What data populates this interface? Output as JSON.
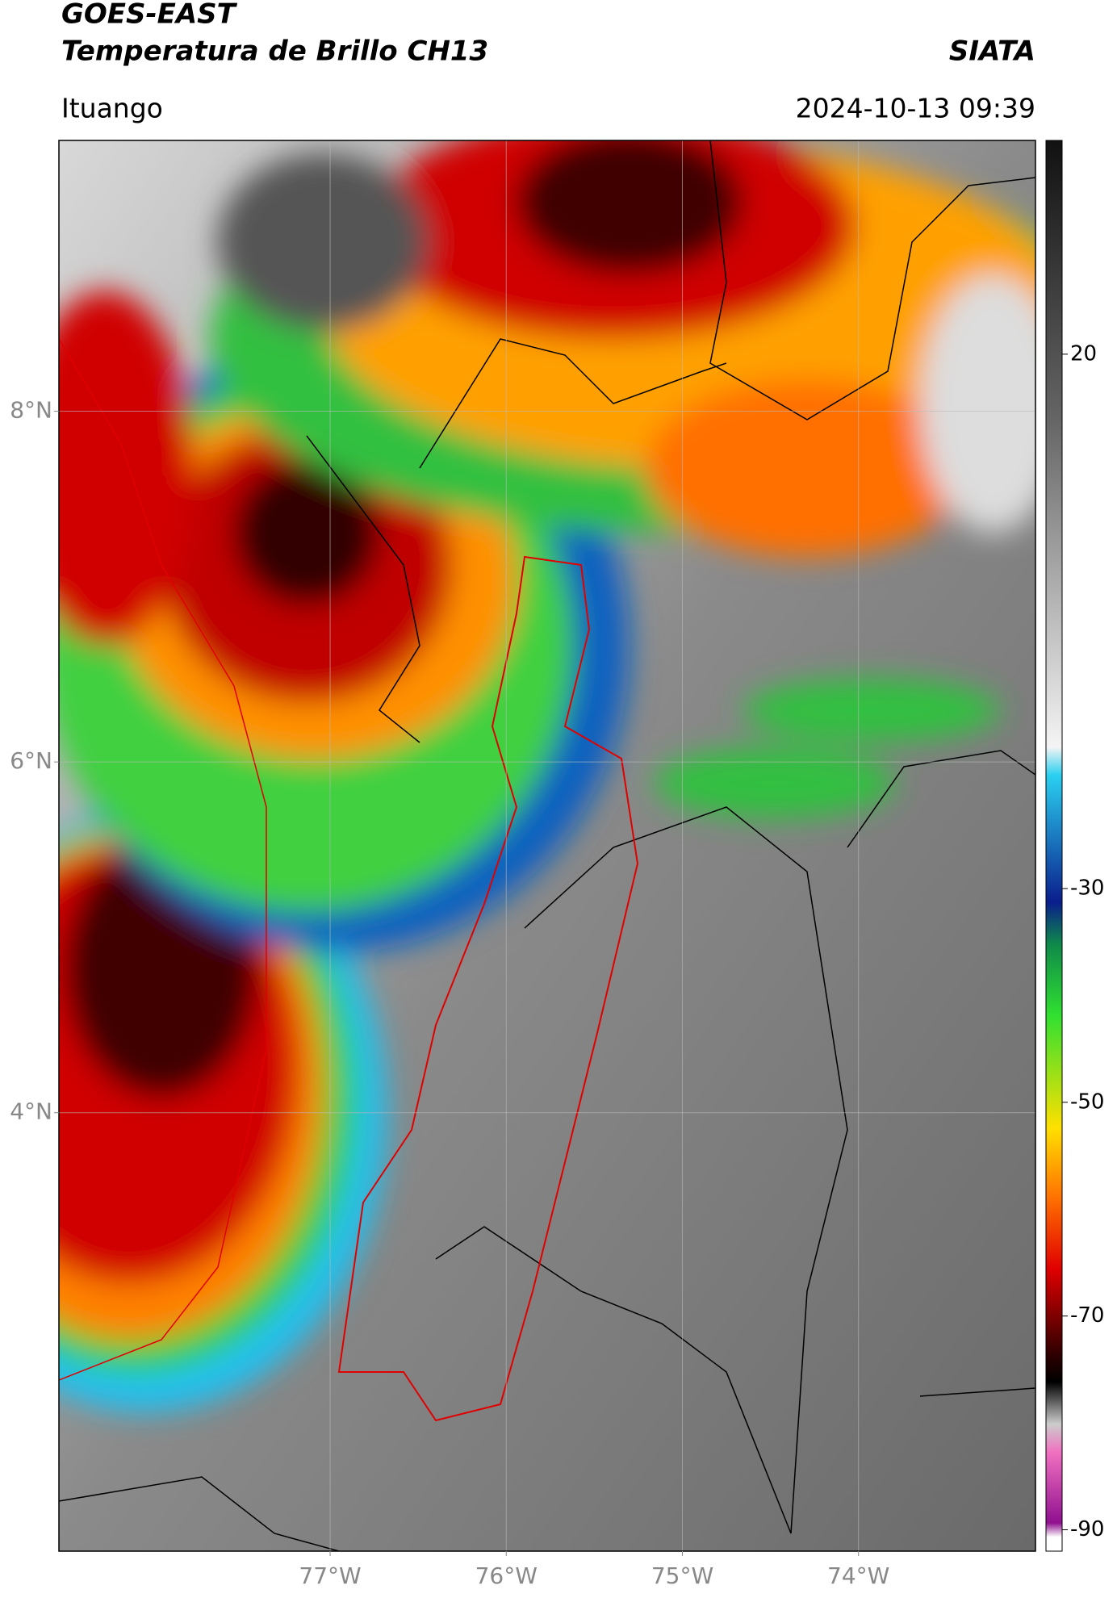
{
  "header": {
    "title": "GOES-EAST",
    "subtitle": "Temperatura de Brillo CH13",
    "brand": "SIATA",
    "location": "Ituango",
    "timestamp": "2024-10-13 09:39"
  },
  "map": {
    "xlim": [
      -78.54,
      -72.995
    ],
    "ylim": [
      1.5,
      9.544
    ],
    "xticks": [
      {
        "value": -77,
        "label": "77°W"
      },
      {
        "value": -76,
        "label": "76°W"
      },
      {
        "value": -75,
        "label": "75°W"
      },
      {
        "value": -74,
        "label": "74°W"
      }
    ],
    "yticks": [
      {
        "value": 8,
        "label": "8°N"
      },
      {
        "value": 6,
        "label": "6°N"
      },
      {
        "value": 4,
        "label": "4°N"
      }
    ],
    "grid": true
  },
  "colorbar": {
    "lim": [
      -92,
      40
    ],
    "ticks": [
      20,
      -30,
      -50,
      -70,
      -90
    ]
  }
}
